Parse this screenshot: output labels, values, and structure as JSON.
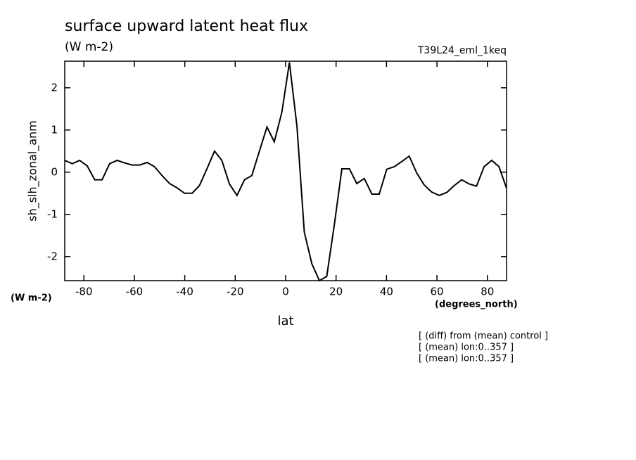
{
  "chart_data": {
    "type": "line",
    "title": "surface upward latent heat flux",
    "subtitle": "(W m-2)",
    "experiment": "T39L24_eml_1keq",
    "y_label": "sh_slh_zonal_anm",
    "y_units": "(W m-2)",
    "x_label": "lat",
    "x_units": "(degrees_north)",
    "notes": [
      "[ (diff) from (mean) control ]",
      "[ (mean) lon:0..357 ]",
      "[ (mean) lon:0..357 ]"
    ],
    "color": "#000000",
    "x": [
      -87.6,
      -84.6,
      -81.7,
      -78.7,
      -75.7,
      -72.8,
      -69.8,
      -66.8,
      -63.9,
      -60.9,
      -57.9,
      -54.9,
      -52.0,
      -49.0,
      -46.0,
      -43.1,
      -40.1,
      -37.1,
      -34.2,
      -31.2,
      -28.2,
      -25.3,
      -22.3,
      -19.3,
      -16.3,
      -13.4,
      -10.4,
      -7.4,
      -4.5,
      -1.5,
      1.5,
      4.5,
      7.4,
      10.4,
      13.4,
      16.3,
      19.3,
      22.3,
      25.3,
      28.2,
      31.2,
      34.2,
      37.1,
      40.1,
      43.1,
      46.0,
      49.0,
      52.0,
      54.9,
      57.9,
      60.9,
      63.9,
      66.8,
      69.8,
      72.8,
      75.7,
      78.7,
      81.7,
      84.6,
      87.6
    ],
    "values": [
      0.28,
      0.2,
      0.28,
      0.15,
      -0.18,
      -0.18,
      0.2,
      0.28,
      0.22,
      0.17,
      0.17,
      0.23,
      0.13,
      -0.08,
      -0.27,
      -0.37,
      -0.5,
      -0.5,
      -0.32,
      0.08,
      0.5,
      0.28,
      -0.28,
      -0.55,
      -0.18,
      -0.08,
      0.5,
      1.07,
      0.72,
      1.42,
      2.6,
      1.08,
      -1.42,
      -2.17,
      -2.57,
      -2.47,
      -1.25,
      0.08,
      0.08,
      -0.27,
      -0.15,
      -0.52,
      -0.52,
      0.07,
      0.13,
      0.25,
      0.38,
      -0.02,
      -0.3,
      -0.47,
      -0.55,
      -0.48,
      -0.32,
      -0.18,
      -0.28,
      -0.33,
      0.13,
      0.28,
      0.13,
      -0.38
    ],
    "xlim": [
      -87.6,
      87.6
    ],
    "ylim": [
      -2.57,
      2.63
    ],
    "xticks": [
      -80,
      -60,
      -40,
      -20,
      0,
      20,
      40,
      60,
      80
    ],
    "yticks": [
      -2,
      -1,
      0,
      1,
      2
    ]
  }
}
